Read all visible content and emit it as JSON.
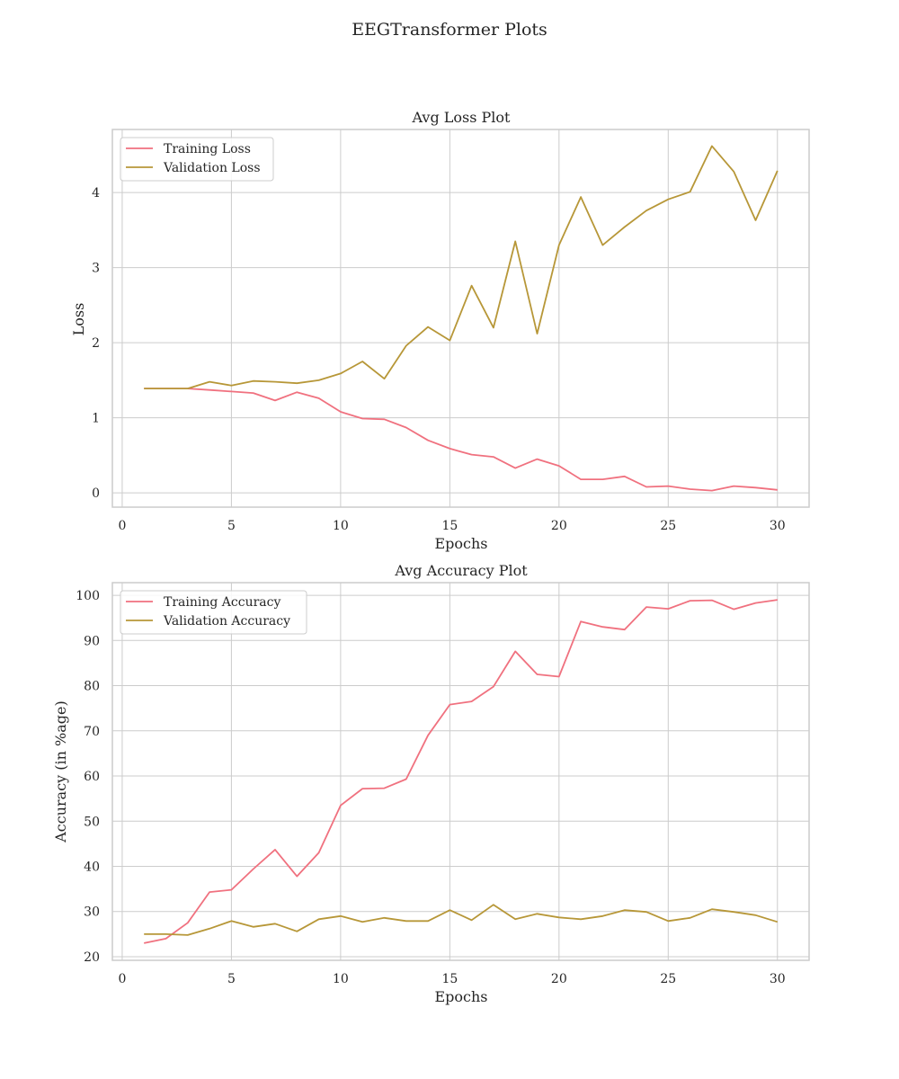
{
  "figure": {
    "suptitle": "EEGTransformer Plots"
  },
  "chart_data": [
    {
      "type": "line",
      "title": "Avg Loss Plot",
      "xlabel": "Epochs",
      "ylabel": "Loss",
      "xlim": [
        -0.45,
        31.45
      ],
      "ylim": [
        -0.19,
        4.84
      ],
      "xticks": [
        0,
        5,
        10,
        15,
        20,
        25,
        30
      ],
      "yticks": [
        0,
        1,
        2,
        3,
        4
      ],
      "grid": true,
      "legend": "upper-left",
      "x": [
        1,
        2,
        3,
        4,
        5,
        6,
        7,
        8,
        9,
        10,
        11,
        12,
        13,
        14,
        15,
        16,
        17,
        18,
        19,
        20,
        21,
        22,
        23,
        24,
        25,
        26,
        27,
        28,
        29,
        30
      ],
      "series": [
        {
          "name": "Training Loss",
          "color": "#f0717f",
          "values": [
            1.39,
            1.39,
            1.39,
            1.37,
            1.35,
            1.33,
            1.23,
            1.34,
            1.26,
            1.08,
            0.99,
            0.98,
            0.87,
            0.7,
            0.59,
            0.51,
            0.48,
            0.33,
            0.45,
            0.36,
            0.18,
            0.18,
            0.22,
            0.08,
            0.09,
            0.05,
            0.03,
            0.09,
            0.07,
            0.04
          ]
        },
        {
          "name": "Validation Loss",
          "color": "#b79738",
          "values": [
            1.39,
            1.39,
            1.39,
            1.48,
            1.43,
            1.49,
            1.48,
            1.46,
            1.5,
            1.59,
            1.75,
            1.52,
            1.96,
            2.21,
            2.03,
            2.76,
            2.2,
            3.35,
            2.12,
            3.3,
            3.94,
            3.3,
            3.54,
            3.76,
            3.91,
            4.01,
            4.62,
            4.28,
            3.63,
            4.29
          ]
        }
      ]
    },
    {
      "type": "line",
      "title": "Avg Accuracy Plot",
      "xlabel": "Epochs",
      "ylabel": "Accuracy (in %age)",
      "xlim": [
        -0.45,
        31.45
      ],
      "ylim": [
        19.2,
        102.8
      ],
      "xticks": [
        0,
        5,
        10,
        15,
        20,
        25,
        30
      ],
      "yticks": [
        20,
        30,
        40,
        50,
        60,
        70,
        80,
        90,
        100
      ],
      "grid": true,
      "legend": "upper-left",
      "x": [
        1,
        2,
        3,
        4,
        5,
        6,
        7,
        8,
        9,
        10,
        11,
        12,
        13,
        14,
        15,
        16,
        17,
        18,
        19,
        20,
        21,
        22,
        23,
        24,
        25,
        26,
        27,
        28,
        29,
        30
      ],
      "series": [
        {
          "name": "Training Accuracy",
          "color": "#f0717f",
          "values": [
            23.0,
            24.0,
            27.5,
            34.3,
            34.8,
            39.4,
            43.7,
            37.8,
            43.0,
            53.5,
            57.2,
            57.3,
            59.3,
            69.0,
            75.8,
            76.5,
            79.8,
            87.6,
            82.5,
            82.0,
            94.2,
            93.0,
            92.4,
            97.4,
            97.0,
            98.8,
            98.9,
            96.9,
            98.3,
            99.0
          ]
        },
        {
          "name": "Validation Accuracy",
          "color": "#b79738",
          "values": [
            25.0,
            25.0,
            24.8,
            26.2,
            27.9,
            26.6,
            27.3,
            25.6,
            28.3,
            29.0,
            27.7,
            28.6,
            27.9,
            27.9,
            30.3,
            28.1,
            31.5,
            28.3,
            29.5,
            28.7,
            28.3,
            29.0,
            30.3,
            29.9,
            27.9,
            28.6,
            30.5,
            29.9,
            29.2,
            27.7
          ]
        }
      ]
    }
  ]
}
